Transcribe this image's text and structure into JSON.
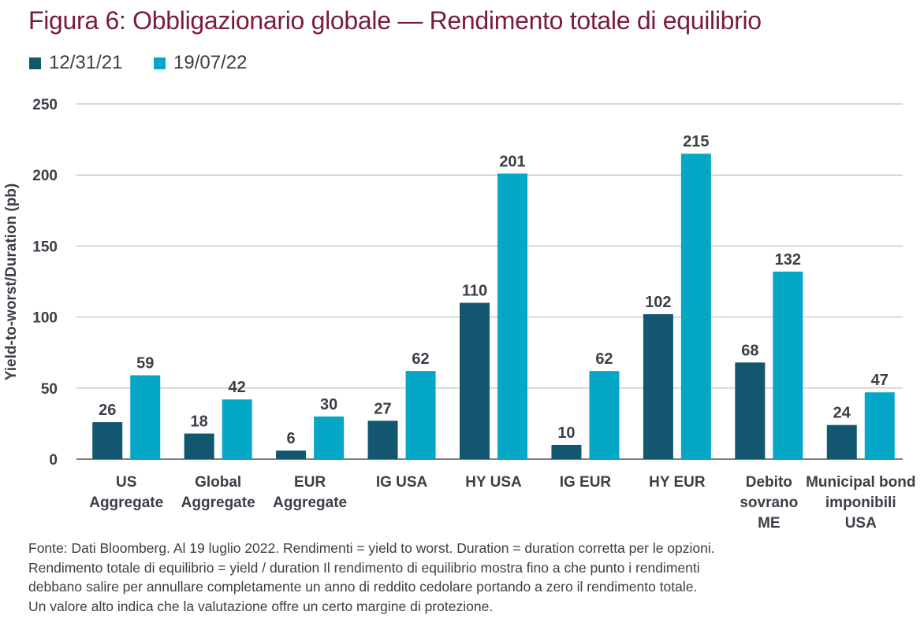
{
  "chart_data": {
    "type": "bar",
    "title": "Figura 6: Obbligazionario globale — Rendimento totale di equilibrio",
    "ylabel": "Yield-to-worst/Duration (pb)",
    "xlabel": "",
    "ylim": [
      0,
      250
    ],
    "yticks": [
      0,
      50,
      100,
      150,
      200,
      250
    ],
    "grid": true,
    "legend": "top-left",
    "categories": [
      [
        "US",
        "Aggregate"
      ],
      [
        "Global",
        "Aggregate"
      ],
      [
        "EUR",
        "Aggregate"
      ],
      [
        "IG USA"
      ],
      [
        "HY USA"
      ],
      [
        "IG EUR"
      ],
      [
        "HY EUR"
      ],
      [
        "Debito",
        "sovrano",
        "ME"
      ],
      [
        "Municipal bond",
        "imponibili",
        "USA"
      ]
    ],
    "series": [
      {
        "name": "12/31/21",
        "color": "#12566f",
        "values": [
          26,
          18,
          6,
          27,
          110,
          10,
          102,
          68,
          24
        ]
      },
      {
        "name": "19/07/22",
        "color": "#04a7c5",
        "values": [
          59,
          42,
          30,
          62,
          201,
          62,
          215,
          132,
          47
        ]
      }
    ]
  },
  "footnote": [
    "Fonte: Dati Bloomberg. Al 19 luglio 2022. Rendimenti = yield to worst. Duration = duration corretta per le opzioni.",
    "Rendimento totale di equilibrio = yield / duration Il rendimento di equilibrio mostra fino a che punto i rendimenti",
    "debbano salire per annullare completamente un anno di reddito cedolare portando a zero il rendimento totale.",
    "Un valore alto indica che la valutazione offre un certo margine di protezione."
  ]
}
